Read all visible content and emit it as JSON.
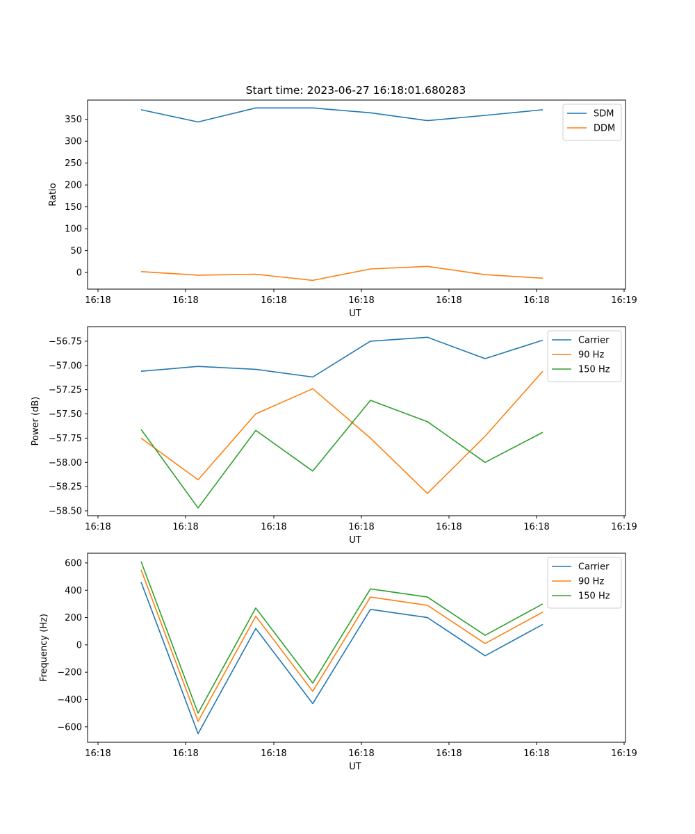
{
  "figure": {
    "title": "Start time: 2023-06-27 16:18:01.680283"
  },
  "chart_data": [
    {
      "type": "line",
      "title": "Start time: 2023-06-27 16:18:01.680283",
      "xlabel": "UT",
      "ylabel": "Ratio",
      "x_tick_labels": [
        "16:18",
        "16:18",
        "16:18",
        "16:18",
        "16:18",
        "16:18",
        "16:19"
      ],
      "y_ticks": [
        0,
        50,
        100,
        150,
        200,
        250,
        300,
        350
      ],
      "ylim": [
        -38,
        394
      ],
      "grid": false,
      "legend_position": "top-right",
      "series": [
        {
          "name": "SDM",
          "color": "#1f77b4",
          "values": [
            372,
            344,
            376,
            376,
            365,
            347,
            359,
            372
          ]
        },
        {
          "name": "DDM",
          "color": "#ff7f0e",
          "values": [
            2,
            -6,
            -4,
            -18,
            8,
            14,
            -5,
            -13
          ]
        }
      ]
    },
    {
      "type": "line",
      "title": "",
      "xlabel": "UT",
      "ylabel": "Power (dB)",
      "x_tick_labels": [
        "16:18",
        "16:18",
        "16:18",
        "16:18",
        "16:18",
        "16:18",
        "16:19"
      ],
      "y_ticks": [
        -58.5,
        -58.25,
        -58.0,
        -57.75,
        -57.5,
        -57.25,
        -57.0,
        -56.75
      ],
      "y_tick_labels": [
        "−58.50",
        "−58.25",
        "−58.00",
        "−57.75",
        "−57.50",
        "−57.25",
        "−57.00",
        "−56.75"
      ],
      "ylim": [
        -58.55,
        -56.6
      ],
      "grid": false,
      "legend_position": "top-right",
      "series": [
        {
          "name": "Carrier",
          "color": "#1f77b4",
          "values": [
            -57.06,
            -57.01,
            -57.04,
            -57.12,
            -56.75,
            -56.71,
            -56.93,
            -56.74
          ]
        },
        {
          "name": "90 Hz",
          "color": "#ff7f0e",
          "values": [
            -57.75,
            -58.18,
            -57.5,
            -57.24,
            -57.75,
            -58.32,
            -57.73,
            -57.06
          ]
        },
        {
          "name": "150 Hz",
          "color": "#2ca02c",
          "values": [
            -57.66,
            -58.47,
            -57.67,
            -58.09,
            -57.36,
            -57.58,
            -58.0,
            -57.69
          ]
        }
      ]
    },
    {
      "type": "line",
      "title": "",
      "xlabel": "UT",
      "ylabel": "Frequency (Hz)",
      "x_tick_labels": [
        "16:18",
        "16:18",
        "16:18",
        "16:18",
        "16:18",
        "16:18",
        "16:19"
      ],
      "y_ticks": [
        -600,
        -400,
        -200,
        0,
        200,
        400,
        600
      ],
      "y_tick_labels": [
        "−600",
        "−400",
        "−200",
        "0",
        "200",
        "400",
        "600"
      ],
      "ylim": [
        -713,
        671
      ],
      "grid": false,
      "legend_position": "top-right",
      "series": [
        {
          "name": "Carrier",
          "color": "#1f77b4",
          "values": [
            460,
            -650,
            120,
            -430,
            260,
            200,
            -80,
            150
          ]
        },
        {
          "name": "90 Hz",
          "color": "#ff7f0e",
          "values": [
            550,
            -560,
            210,
            -340,
            350,
            290,
            10,
            240
          ]
        },
        {
          "name": "150 Hz",
          "color": "#2ca02c",
          "values": [
            610,
            -500,
            270,
            -280,
            410,
            350,
            70,
            300
          ]
        }
      ]
    }
  ]
}
